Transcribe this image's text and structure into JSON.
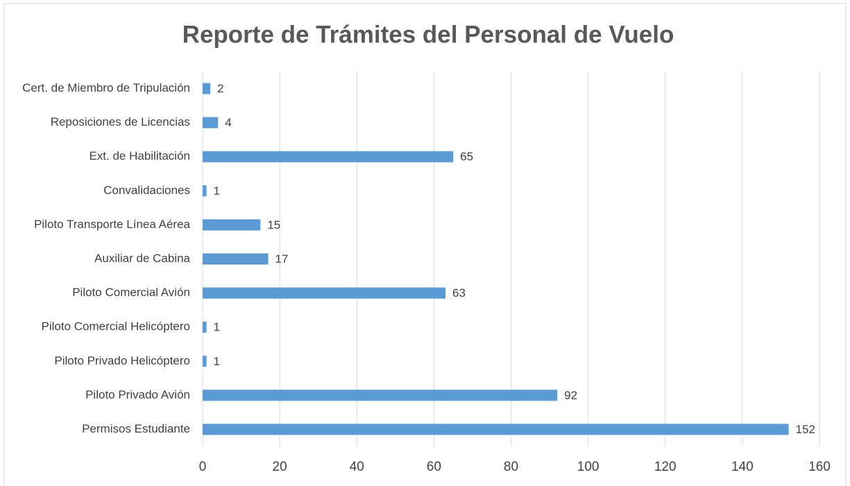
{
  "chart_data": {
    "type": "barh",
    "title": "Reporte de Trámites del Personal de Vuelo",
    "categories": [
      "Cert. de Miembro de Tripulación",
      "Reposiciones de Licencias",
      "Ext. de Habilitación",
      "Convalidaciones",
      "Piloto Transporte Línea Aérea",
      "Auxiliar de Cabina",
      "Piloto Comercial Avión",
      "Piloto Comercial Helicóptero",
      "Piloto Privado Helicóptero",
      "Piloto Privado Avión",
      "Permisos Estudiante"
    ],
    "values": [
      2,
      4,
      65,
      1,
      15,
      17,
      63,
      1,
      1,
      92,
      152
    ],
    "color": "#5b9bd5",
    "xlim": [
      0,
      160
    ],
    "xticks": [
      0,
      20,
      40,
      60,
      80,
      100,
      120,
      140,
      160
    ],
    "grid": true
  }
}
